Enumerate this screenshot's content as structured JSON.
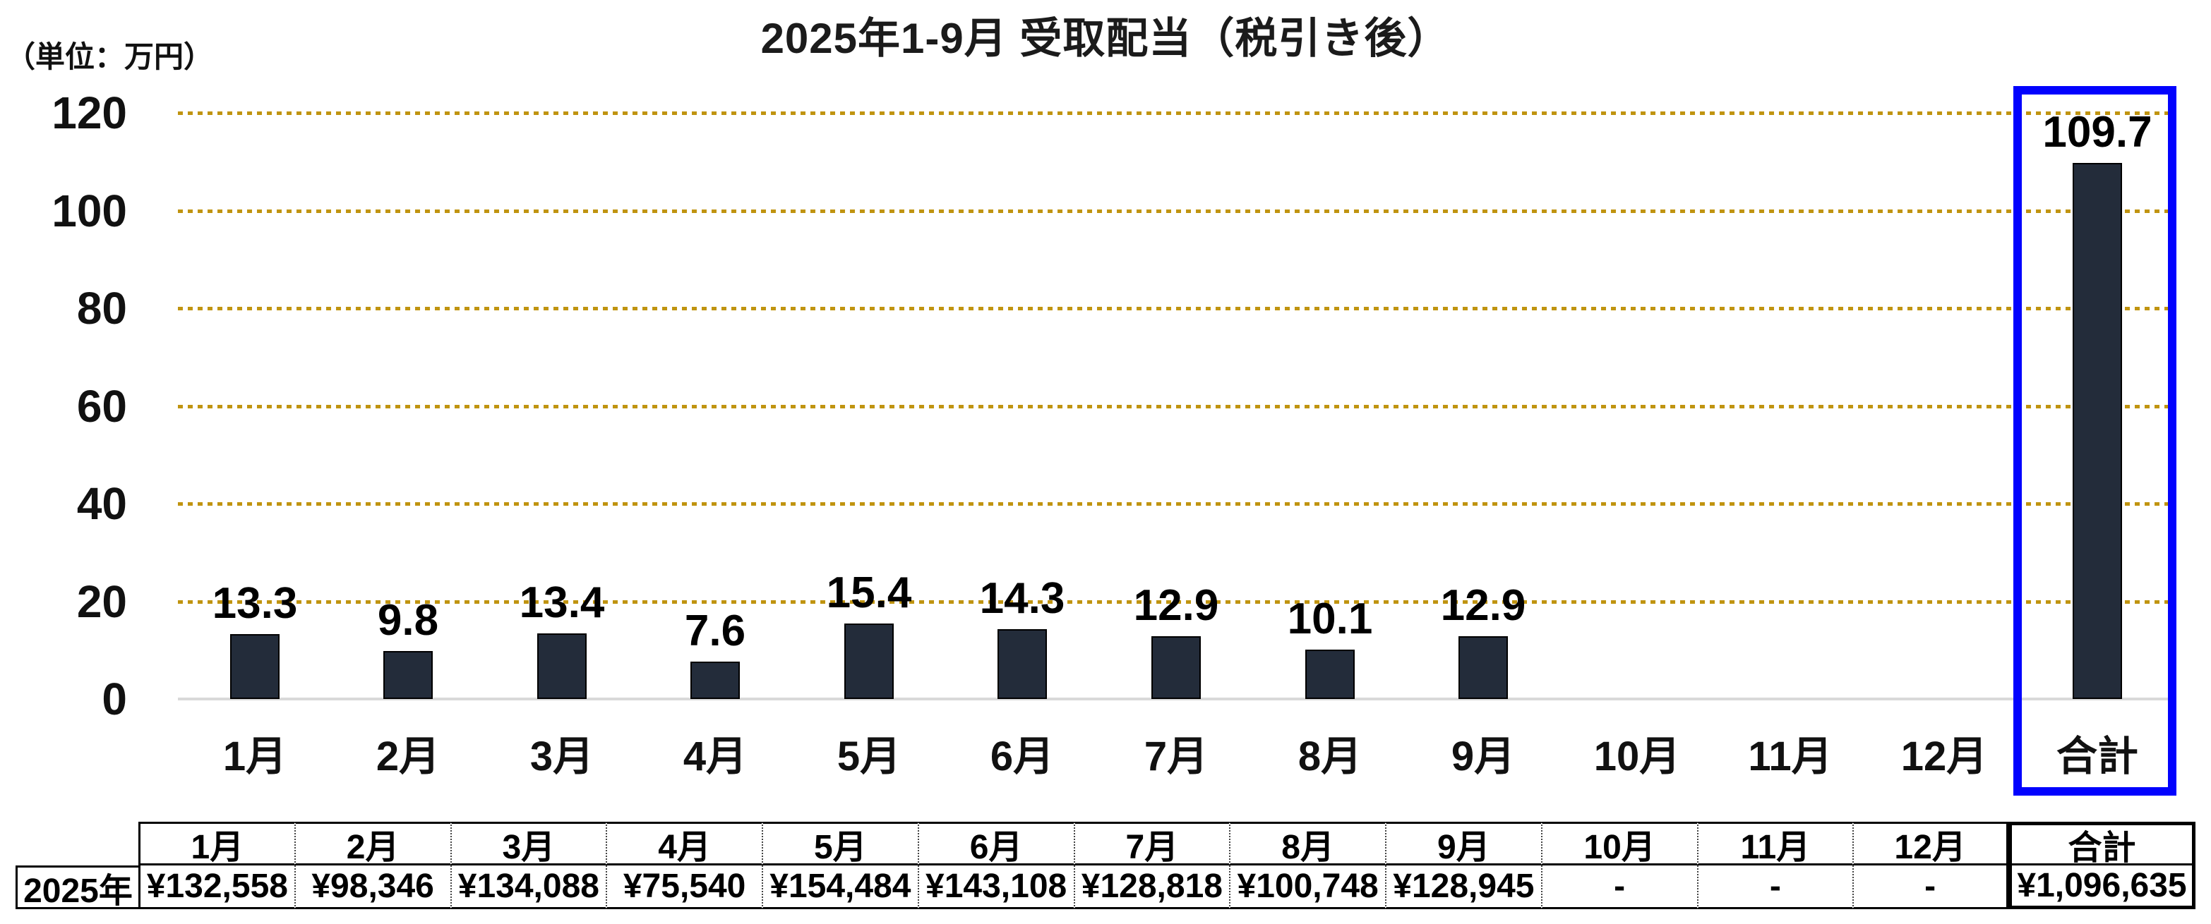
{
  "title": "2025年1-9月 受取配当（税引き後）",
  "unit_label": "（単位：万円）",
  "colors": {
    "bar_fill": "#232C3A",
    "bar_border": "#000000",
    "gridline": "#C09410",
    "axis_line": "#D9D9D9",
    "total_highlight_box": "#0202FE",
    "text": "#111111"
  },
  "chart_data": {
    "type": "bar",
    "title": "2025年1-9月 受取配当（税引き後）",
    "ylabel": "（単位：万円）",
    "categories": [
      "1月",
      "2月",
      "3月",
      "4月",
      "5月",
      "6月",
      "7月",
      "8月",
      "9月",
      "10月",
      "11月",
      "12月",
      "合計"
    ],
    "values": [
      13.3,
      9.8,
      13.4,
      7.6,
      15.4,
      14.3,
      12.9,
      10.1,
      12.9,
      null,
      null,
      null,
      109.7
    ],
    "value_labels": [
      "13.3",
      "9.8",
      "13.4",
      "7.6",
      "15.4",
      "14.3",
      "12.9",
      "10.1",
      "12.9",
      "",
      "",
      "",
      "109.7"
    ],
    "ylim": [
      0,
      120
    ],
    "yticks": [
      0,
      20,
      40,
      60,
      80,
      100,
      120
    ],
    "grid": "horizontal-dotted",
    "legend": "none",
    "annotation": "合計 category enclosed in thick blue rectangle"
  },
  "y_axis": {
    "ticks": [
      "120",
      "100",
      "80",
      "60",
      "40",
      "20",
      "0"
    ]
  },
  "table": {
    "row_header": "2025年",
    "columns": [
      "1月",
      "2月",
      "3月",
      "4月",
      "5月",
      "6月",
      "7月",
      "8月",
      "9月",
      "10月",
      "11月",
      "12月",
      "合計"
    ],
    "values": [
      "¥132,558",
      "¥98,346",
      "¥134,088",
      "¥75,540",
      "¥154,484",
      "¥143,108",
      "¥128,818",
      "¥100,748",
      "¥128,945",
      "-",
      "-",
      "-",
      "¥1,096,635"
    ]
  }
}
